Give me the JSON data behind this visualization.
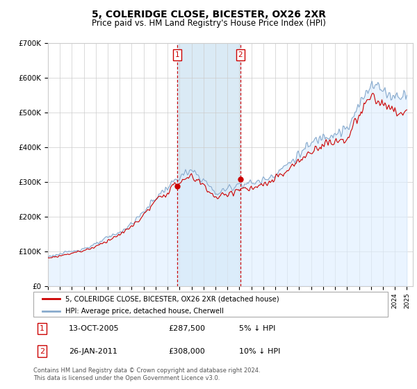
{
  "title": "5, COLERIDGE CLOSE, BICESTER, OX26 2XR",
  "subtitle": "Price paid vs. HM Land Registry's House Price Index (HPI)",
  "ylim": [
    0,
    700000
  ],
  "yticks": [
    0,
    100000,
    200000,
    300000,
    400000,
    500000,
    600000,
    700000
  ],
  "ytick_labels": [
    "£0",
    "£100K",
    "£200K",
    "£300K",
    "£400K",
    "£500K",
    "£600K",
    "£700K"
  ],
  "xlim_start": 1995.0,
  "xlim_end": 2025.5,
  "transaction1_date": 2005.79,
  "transaction1_price": 287500,
  "transaction1_label": "1",
  "transaction2_date": 2011.07,
  "transaction2_price": 308000,
  "transaction2_label": "2",
  "line1_color": "#cc0000",
  "line2_color": "#88aacc",
  "line2_fill_color": "#ddeeff",
  "shade_color": "#daeaf5",
  "grid_color": "#cccccc",
  "legend1_label": "5, COLERIDGE CLOSE, BICESTER, OX26 2XR (detached house)",
  "legend2_label": "HPI: Average price, detached house, Cherwell",
  "footer": "Contains HM Land Registry data © Crown copyright and database right 2024.\nThis data is licensed under the Open Government Licence v3.0."
}
